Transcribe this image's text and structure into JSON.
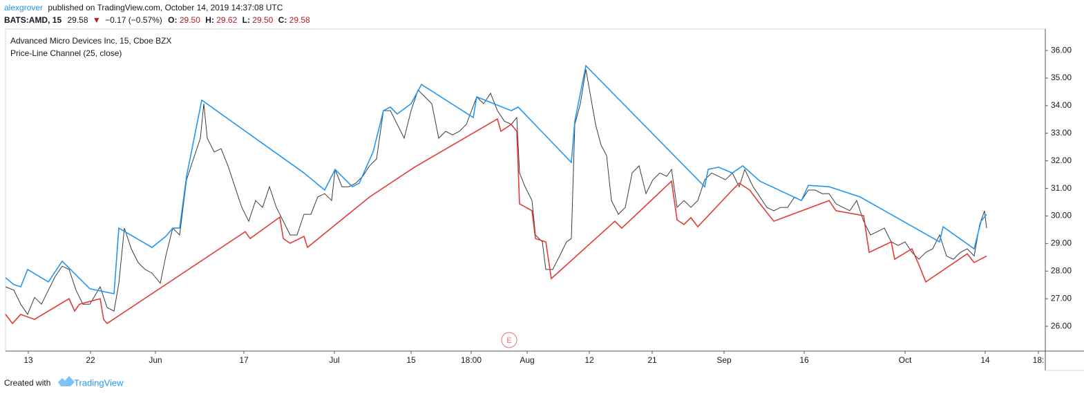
{
  "header": {
    "author": "alexgrover",
    "published": "published on TradingView.com, October 14, 2019 14:37:08 UTC",
    "symbol": "BATS:AMD, 15",
    "last": "29.58",
    "arrow": "▼",
    "change": "−0.17 (−0.57%)",
    "o_label": "O:",
    "o": "29.50",
    "h_label": "H:",
    "h": "29.62",
    "l_label": "L:",
    "l": "29.50",
    "c_label": "C:",
    "c": "29.58"
  },
  "footer": {
    "created": "Created with",
    "brand": "TradingView"
  },
  "chart_data": {
    "type": "line",
    "title": "Advanced Micro Devices Inc, 15, Cboe BZX",
    "subtitle": "Price-Line Channel (25, close)",
    "annotation": "E",
    "xlim": [
      0,
      1505
    ],
    "ylim": [
      25.1,
      36.78
    ],
    "xticks": [
      {
        "value": 33,
        "label": "13"
      },
      {
        "value": 123,
        "label": "22"
      },
      {
        "value": 217,
        "label": "Jun"
      },
      {
        "value": 345,
        "label": "17"
      },
      {
        "value": 476,
        "label": "Jul"
      },
      {
        "value": 587,
        "label": "15"
      },
      {
        "value": 674,
        "label": "18:00"
      },
      {
        "value": 755,
        "label": "Aug"
      },
      {
        "value": 845,
        "label": "12"
      },
      {
        "value": 936,
        "label": "21"
      },
      {
        "value": 1040,
        "label": "Sep"
      },
      {
        "value": 1156,
        "label": "16"
      },
      {
        "value": 1302,
        "label": "Oct"
      },
      {
        "value": 1418,
        "label": "14"
      },
      {
        "value": 1495,
        "label": "18:"
      }
    ],
    "yticks": [
      {
        "value": 26,
        "label": "26.00"
      },
      {
        "value": 27,
        "label": "27.00"
      },
      {
        "value": 28,
        "label": "28.00"
      },
      {
        "value": 29,
        "label": "29.00"
      },
      {
        "value": 30,
        "label": "30.00"
      },
      {
        "value": 31,
        "label": "31.00"
      },
      {
        "value": 32,
        "label": "32.00"
      },
      {
        "value": 33,
        "label": "33.00"
      },
      {
        "value": 34,
        "label": "34.00"
      },
      {
        "value": 35,
        "label": "35.00"
      },
      {
        "value": 36,
        "label": "36.00"
      }
    ],
    "series": [
      {
        "color": "#3a3a3a",
        "x": [
          0,
          12,
          22,
          32,
          42,
          52,
          62,
          72,
          82,
          92,
          102,
          112,
          122,
          137,
          147,
          157,
          164,
          172,
          182,
          192,
          202,
          212,
          224,
          232,
          242,
          252,
          262,
          272,
          282,
          287,
          292,
          302,
          312,
          322,
          332,
          342,
          352,
          362,
          372,
          382,
          392,
          402,
          412,
          422,
          432,
          442,
          452,
          462,
          472,
          477,
          487,
          497,
          507,
          517,
          527,
          537,
          547,
          557,
          567,
          577,
          587,
          597,
          607,
          617,
          627,
          637,
          647,
          657,
          667,
          682,
          692,
          702,
          712,
          722,
          732,
          740,
          744,
          752,
          762,
          767,
          777,
          782,
          792,
          802,
          812,
          819,
          824,
          832,
          840,
          847,
          854,
          862,
          870,
          877,
          887,
          897,
          907,
          917,
          927,
          937,
          947,
          957,
          964,
          972,
          982,
          992,
          1002,
          1012,
          1022,
          1032,
          1042,
          1052,
          1062,
          1070,
          1082,
          1092,
          1102,
          1112,
          1122,
          1132,
          1142,
          1152,
          1162,
          1172,
          1182,
          1192,
          1202,
          1212,
          1222,
          1232,
          1242,
          1252,
          1262,
          1272,
          1282,
          1292,
          1302,
          1312,
          1322,
          1332,
          1342,
          1352,
          1362,
          1372,
          1382,
          1392,
          1402,
          1410,
          1417,
          1420
        ],
        "values": [
          27.43,
          27.31,
          26.8,
          26.43,
          27.05,
          26.8,
          27.31,
          27.81,
          28.18,
          28.06,
          27.31,
          26.8,
          26.8,
          27.43,
          26.68,
          26.55,
          27.56,
          29.56,
          28.81,
          28.31,
          28.06,
          27.93,
          27.56,
          28.55,
          29.56,
          29.31,
          31.31,
          32.07,
          32.82,
          34.07,
          32.82,
          32.32,
          32.44,
          31.82,
          31.06,
          30.31,
          29.81,
          30.56,
          30.31,
          31.06,
          30.31,
          29.81,
          29.31,
          29.31,
          30.06,
          30.06,
          30.69,
          30.81,
          30.56,
          31.69,
          31.06,
          31.06,
          31.19,
          31.44,
          31.82,
          32.07,
          33.82,
          33.82,
          33.32,
          32.82,
          33.82,
          34.57,
          34.32,
          34.07,
          32.82,
          33.07,
          32.94,
          33.07,
          33.32,
          34.32,
          34.07,
          34.45,
          33.82,
          33.44,
          33.32,
          33.57,
          31.56,
          31.06,
          30.56,
          29.31,
          29.06,
          28.06,
          28.06,
          28.55,
          29.06,
          29.18,
          33.32,
          34.07,
          35.32,
          34.32,
          33.32,
          32.57,
          32.19,
          30.56,
          30.06,
          30.31,
          31.56,
          31.82,
          30.81,
          31.31,
          31.56,
          31.44,
          31.69,
          30.31,
          30.56,
          30.31,
          30.56,
          31.31,
          31.56,
          31.44,
          31.31,
          31.56,
          31.06,
          31.69,
          31.06,
          30.69,
          30.31,
          30.19,
          30.31,
          30.31,
          30.69,
          30.56,
          30.94,
          30.94,
          30.81,
          30.81,
          30.44,
          30.31,
          30.19,
          30.56,
          29.81,
          29.31,
          29.43,
          29.56,
          29.06,
          28.93,
          29.06,
          28.68,
          28.43,
          28.68,
          28.81,
          29.31,
          28.55,
          28.43,
          28.68,
          28.81,
          28.55,
          29.69,
          30.19,
          29.56
        ]
      },
      {
        "color": "#2196f3",
        "x": [
          0,
          12,
          22,
          32,
          62,
          82,
          122,
          157,
          164,
          212,
          232,
          242,
          252,
          262,
          284,
          432,
          462,
          477,
          502,
          512,
          532,
          547,
          557,
          567,
          587,
          602,
          677,
          682,
          732,
          742,
          819,
          824,
          840,
          1012,
          1017,
          1032,
          1052,
          1067,
          1092,
          1152,
          1162,
          1192,
          1237,
          1352,
          1357,
          1402,
          1412,
          1420
        ],
        "values": [
          27.76,
          27.51,
          27.43,
          28.06,
          27.61,
          28.36,
          27.36,
          27.18,
          29.56,
          28.86,
          29.26,
          29.56,
          29.56,
          31.44,
          34.2,
          31.56,
          30.94,
          31.69,
          31.06,
          31.19,
          32.32,
          33.82,
          33.95,
          33.7,
          34.07,
          34.77,
          33.57,
          34.32,
          33.82,
          33.95,
          31.94,
          33.44,
          35.45,
          31.06,
          31.69,
          31.77,
          31.56,
          31.82,
          31.26,
          30.56,
          31.11,
          31.06,
          30.69,
          29.06,
          29.61,
          28.81,
          29.81,
          30.06
        ]
      },
      {
        "color": "#e53935",
        "x": [
          0,
          10,
          22,
          42,
          92,
          100,
          107,
          137,
          142,
          147,
          347,
          354,
          397,
          402,
          412,
          432,
          437,
          527,
          592,
          712,
          717,
          732,
          740,
          744,
          762,
          767,
          782,
          790,
          882,
          892,
          964,
          972,
          982,
          992,
          1002,
          1052,
          1062,
          1077,
          1092,
          1112,
          1192,
          1202,
          1242,
          1250,
          1282,
          1287,
          1312,
          1322,
          1332,
          1392,
          1402,
          1420
        ],
        "values": [
          26.43,
          26.1,
          26.43,
          26.25,
          27.0,
          26.55,
          26.8,
          27.0,
          26.25,
          26.1,
          29.43,
          29.18,
          29.96,
          29.18,
          29.01,
          29.26,
          28.86,
          30.69,
          31.77,
          33.52,
          33.07,
          33.32,
          33.07,
          30.44,
          30.19,
          29.18,
          29.06,
          27.73,
          29.81,
          29.56,
          31.26,
          29.86,
          29.69,
          29.94,
          29.61,
          30.94,
          31.19,
          30.94,
          30.44,
          29.81,
          30.56,
          30.19,
          30.01,
          28.68,
          29.06,
          28.43,
          28.81,
          28.23,
          27.61,
          28.63,
          28.31,
          28.55
        ]
      }
    ]
  }
}
